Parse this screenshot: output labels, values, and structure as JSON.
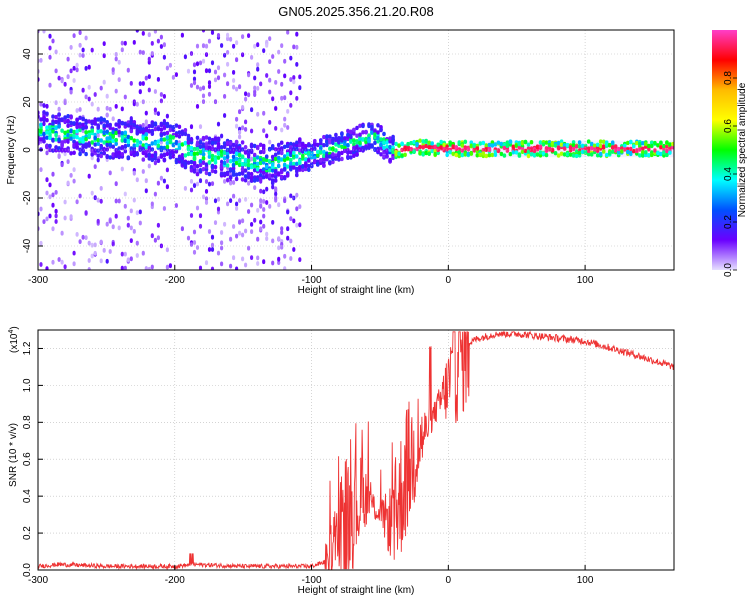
{
  "title": "GN05.2025.356.21.20.R08",
  "chart_data": [
    {
      "type": "heatmap",
      "xlabel": "Height of straight line (km)",
      "ylabel": "Frequency (Hz)",
      "xlim": [
        -300,
        165
      ],
      "ylim": [
        -50,
        50
      ],
      "xticks": [
        "-300",
        "-200",
        "-100",
        "0",
        "100"
      ],
      "yticks": [
        "-40",
        "-20",
        "0",
        "20",
        "40"
      ],
      "colorbar": {
        "label": "Normalized spectral amplitude",
        "range": [
          0.0,
          1.0
        ],
        "ticks": [
          "0.0",
          "0.2",
          "0.4",
          "0.6",
          "0.8"
        ],
        "colormap": [
          "#ff3ec8",
          "#ff0000",
          "#ffbb00",
          "#ffff00",
          "#00ff00",
          "#00ffff",
          "#0050ff",
          "#6a00ff",
          "#e6e0ff"
        ]
      },
      "grid": true,
      "ridge": [
        {
          "x": -300,
          "y": 8
        },
        {
          "x": -250,
          "y": 5
        },
        {
          "x": -200,
          "y": 3
        },
        {
          "x": -185,
          "y": -2
        },
        {
          "x": -130,
          "y": -6
        },
        {
          "x": -100,
          "y": -2
        },
        {
          "x": -75,
          "y": 2
        },
        {
          "x": -55,
          "y": 6
        },
        {
          "x": -40,
          "y": 0
        },
        {
          "x": -20,
          "y": 1
        },
        {
          "x": 0,
          "y": 0.5
        },
        {
          "x": 165,
          "y": 0.5
        }
      ]
    },
    {
      "type": "line",
      "xlabel": "Height of straight line (km)",
      "ylabel": "SNR (10 * v/v)",
      "multiplier": "(x10",
      "multiplier_exp": "4",
      "xlim": [
        -300,
        165
      ],
      "ylim": [
        0,
        1.3
      ],
      "xticks": [
        "-300",
        "-200",
        "-100",
        "0",
        "100"
      ],
      "yticks": [
        "0.0",
        "0.2",
        "0.4",
        "0.6",
        "0.8",
        "1.0",
        "1.2"
      ],
      "grid": true,
      "series": [
        {
          "color": "#ee3333",
          "points": [
            {
              "x": -300,
              "y": 0.02
            },
            {
              "x": -285,
              "y": 0.03
            },
            {
              "x": -250,
              "y": 0.02
            },
            {
              "x": -200,
              "y": 0.02
            },
            {
              "x": -185,
              "y": 0.03
            },
            {
              "x": -150,
              "y": 0.02
            },
            {
              "x": -100,
              "y": 0.02
            },
            {
              "x": -88,
              "y": 0.05
            },
            {
              "x": -80,
              "y": 0.2
            },
            {
              "x": -70,
              "y": 0.35
            },
            {
              "x": -60,
              "y": 0.4
            },
            {
              "x": -50,
              "y": 0.3
            },
            {
              "x": -40,
              "y": 0.25
            },
            {
              "x": -30,
              "y": 0.55
            },
            {
              "x": -20,
              "y": 0.7
            },
            {
              "x": -10,
              "y": 0.85
            },
            {
              "x": 0,
              "y": 1.0
            },
            {
              "x": 10,
              "y": 1.2
            },
            {
              "x": 20,
              "y": 1.25
            },
            {
              "x": 35,
              "y": 1.28
            },
            {
              "x": 50,
              "y": 1.28
            },
            {
              "x": 75,
              "y": 1.26
            },
            {
              "x": 100,
              "y": 1.24
            },
            {
              "x": 130,
              "y": 1.18
            },
            {
              "x": 165,
              "y": 1.1
            }
          ]
        }
      ]
    }
  ]
}
